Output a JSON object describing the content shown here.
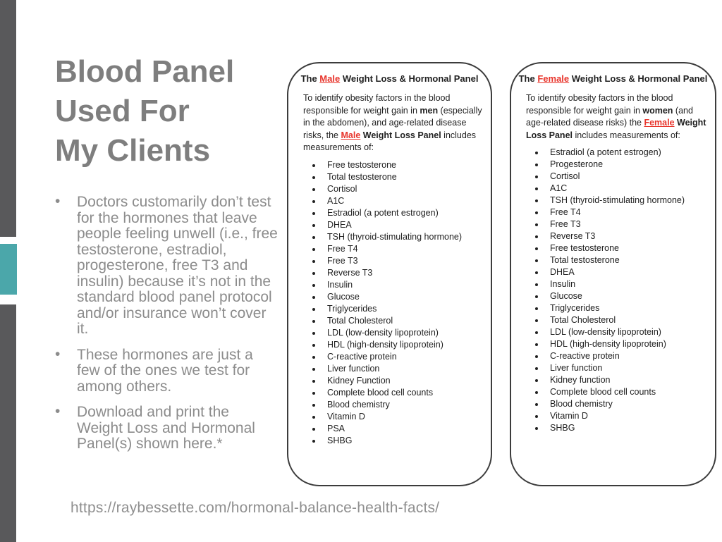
{
  "slide": {
    "title_lines": [
      "Blood Panel",
      "Used For",
      "My Clients"
    ],
    "bullets": [
      "Doctors customarily don’t test for the hormones that leave people feeling unwell (i.e., free testosterone, estradiol, progesterone, free T3 and insulin) because it’s not in the standard blood panel protocol and/or insurance won’t cover it.",
      "These hormones are just a few of the ones we test for among others.",
      "Download and print the Weight Loss and Hormonal Panel(s) shown here.*"
    ],
    "source_url": "https://raybessette.com/hormonal-balance-health-facts/"
  },
  "colors": {
    "accent_teal": "#4ba7aa",
    "accent_gray": "#59595b",
    "title_gray": "#7e7e7e",
    "highlight_red": "#e8342b"
  },
  "panels": [
    {
      "id": "male",
      "title_segments": [
        {
          "text": "The ",
          "b": 1
        },
        {
          "text": "Male",
          "b": 1,
          "red": 1,
          "u": 1
        },
        {
          "text": " Weight Loss & Hormonal Panel",
          "b": 1
        }
      ],
      "intro_segments": [
        {
          "text": "To identify obesity factors in the blood responsible for weight gain in "
        },
        {
          "text": "men",
          "b": 1
        },
        {
          "text": " (especially in the abdomen), and age-related disease risks, the "
        },
        {
          "text": "Male",
          "b": 1,
          "red": 1,
          "u": 1
        },
        {
          "text": " "
        },
        {
          "text": "Weight Loss Panel",
          "b": 1
        },
        {
          "text": " includes measurements of:"
        }
      ],
      "items": [
        "Free testosterone",
        "Total testosterone",
        "Cortisol",
        "A1C",
        "Estradiol (a potent estrogen)",
        "DHEA",
        "TSH (thyroid-stimulating hormone)",
        "Free T4",
        "Free T3",
        "Reverse T3",
        "Insulin",
        "Glucose",
        "Triglycerides",
        "Total Cholesterol",
        "LDL (low-density lipoprotein)",
        "HDL (high-density lipoprotein)",
        "C-reactive protein",
        "Liver function",
        "Kidney Function",
        "Complete blood cell counts",
        "Blood chemistry",
        "Vitamin D",
        "PSA",
        "SHBG"
      ]
    },
    {
      "id": "female",
      "title_segments": [
        {
          "text": "The ",
          "b": 1
        },
        {
          "text": "Female",
          "b": 1,
          "red": 1,
          "u": 1
        },
        {
          "text": " Weight Loss & Hormonal Panel",
          "b": 1
        }
      ],
      "intro_segments": [
        {
          "text": "To identify obesity factors in the blood responsible for weight gain in "
        },
        {
          "text": "women",
          "b": 1
        },
        {
          "text": " (and age-related disease risks) the "
        },
        {
          "text": "Female",
          "b": 1,
          "red": 1,
          "u": 1
        },
        {
          "text": " "
        },
        {
          "text": "Weight Loss Panel",
          "b": 1
        },
        {
          "text": " includes measurements of:"
        }
      ],
      "items": [
        "Estradiol (a potent estrogen)",
        "Progesterone",
        "Cortisol",
        "A1C",
        "TSH (thyroid-stimulating hormone)",
        "Free T4",
        "Free T3",
        "Reverse T3",
        "Free testosterone",
        "Total testosterone",
        "DHEA",
        "Insulin",
        "Glucose",
        "Triglycerides",
        "Total Cholesterol",
        "LDL (low-density lipoprotein)",
        "HDL (high-density lipoprotein)",
        "C-reactive protein",
        "Liver function",
        "Kidney function",
        "Complete blood cell counts",
        "Blood chemistry",
        "Vitamin D",
        "SHBG"
      ]
    }
  ]
}
